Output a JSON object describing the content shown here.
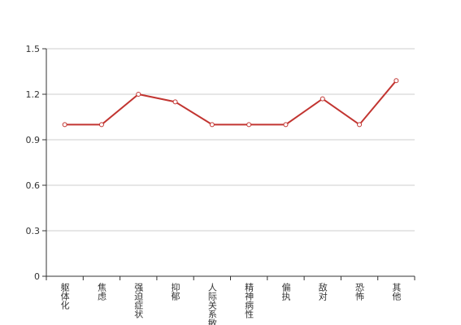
{
  "chart_data": {
    "type": "line",
    "categories": [
      "躯体化",
      "焦虑",
      "强迫症状",
      "抑郁",
      "人际关系敏感",
      "精神病性",
      "偏执",
      "敌对",
      "恐怖",
      "其他"
    ],
    "values": [
      1,
      1,
      1.2,
      1.15,
      1,
      1,
      1,
      1.17,
      1,
      1.29
    ],
    "color": "#c23531",
    "ylim": [
      0,
      1.5
    ],
    "yticks": [
      0,
      0.3,
      0.6,
      0.9,
      1.2,
      1.5
    ],
    "grid": true
  }
}
